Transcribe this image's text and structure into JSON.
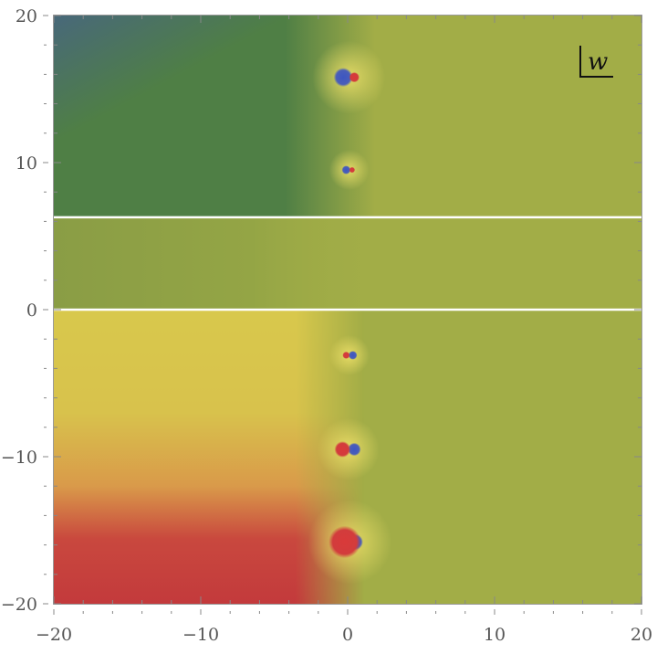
{
  "chart_data": {
    "type": "heatmap",
    "description_kind": "complex phase (domain-coloring) plot",
    "title": "",
    "xlabel": "",
    "ylabel": "",
    "xlim": [
      -20,
      20
    ],
    "ylim": [
      -20,
      20
    ],
    "x_ticks": [
      -20,
      -10,
      0,
      10,
      20
    ],
    "y_ticks": [
      -20,
      -10,
      0,
      10,
      20
    ],
    "x_tick_labels": [
      "−20",
      "−10",
      "0",
      "10",
      "20"
    ],
    "y_tick_labels": [
      "−20",
      "−10",
      "0",
      "10",
      "20"
    ],
    "variable_label": "w",
    "branch_cuts_y": [
      6.28,
      0
    ],
    "zeros": [
      {
        "x": -0.3,
        "y": 15.8,
        "r": 0.65
      },
      {
        "x": -0.1,
        "y": 9.5,
        "r": 0.3
      },
      {
        "x": 0.35,
        "y": -3.1,
        "r": 0.3
      },
      {
        "x": 0.45,
        "y": -9.5,
        "r": 0.45
      },
      {
        "x": 0.5,
        "y": -15.8,
        "r": 0.55
      }
    ],
    "poles": [
      {
        "x": 0.45,
        "y": 15.8,
        "r": 0.35
      },
      {
        "x": 0.3,
        "y": 9.5,
        "r": 0.2
      },
      {
        "x": -0.1,
        "y": -3.1,
        "r": 0.25
      },
      {
        "x": -0.35,
        "y": -9.5,
        "r": 0.55
      },
      {
        "x": -0.2,
        "y": -15.8,
        "r": 1.1
      }
    ],
    "colors": {
      "right_half": "#a2ad47",
      "upper_left": "#4f7f45",
      "upper_left_corner": "#48687a",
      "middle_left": "#8a9d45",
      "lower_left_upper": "#d6c24c",
      "lower_left_lower": "#c33a3c",
      "zero": "#4a5fb8",
      "pole": "#d23c3c",
      "branch_cut": "#ffffff"
    }
  }
}
